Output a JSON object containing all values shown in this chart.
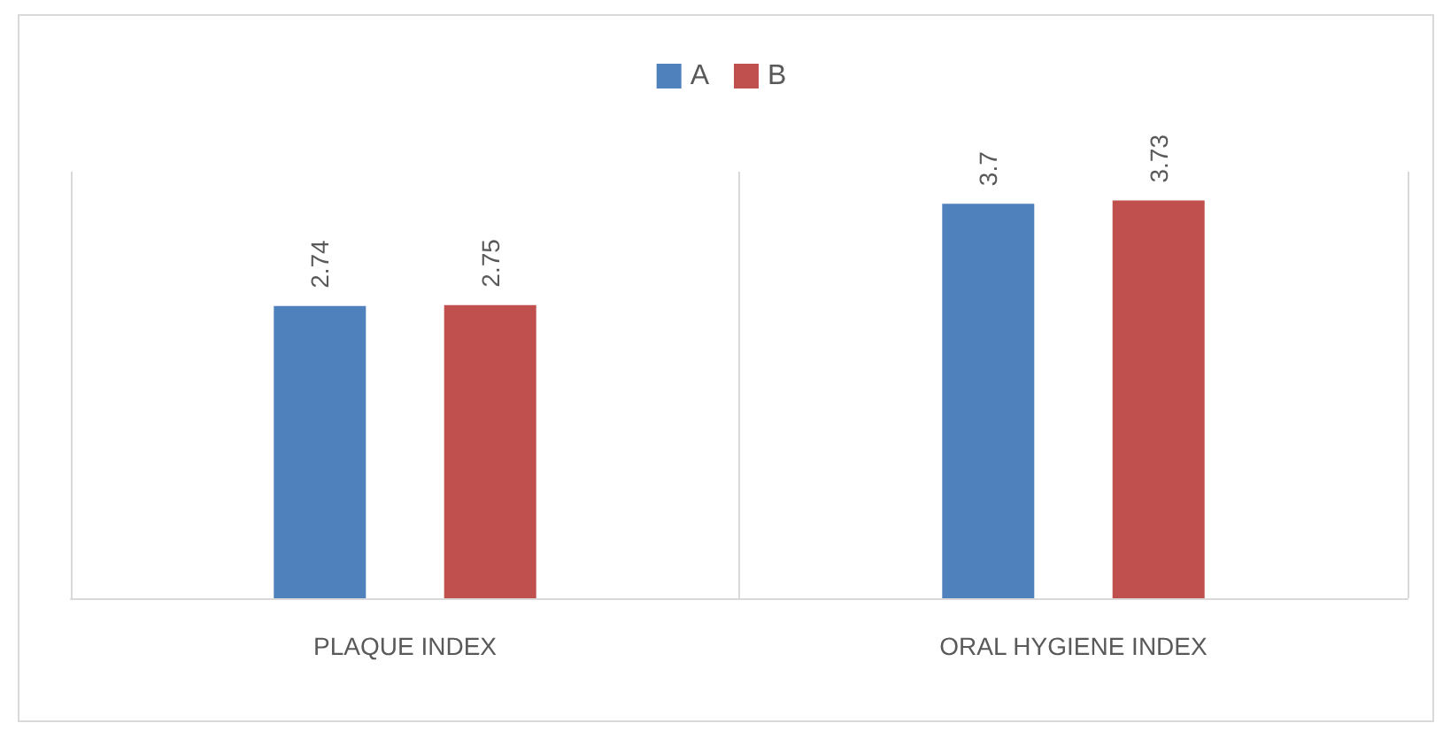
{
  "chart_data": {
    "type": "bar",
    "categories": [
      "PLAQUE INDEX",
      "ORAL HYGIENE INDEX"
    ],
    "series": [
      {
        "name": "A",
        "color": "#4f81bd",
        "values": [
          2.74,
          3.7
        ]
      },
      {
        "name": "B",
        "color": "#c0504d",
        "values": [
          2.75,
          3.73
        ]
      }
    ],
    "ylim": [
      0,
      4
    ],
    "data_labels": true,
    "legend": "top",
    "grid": "x",
    "tick_labels": "x"
  }
}
